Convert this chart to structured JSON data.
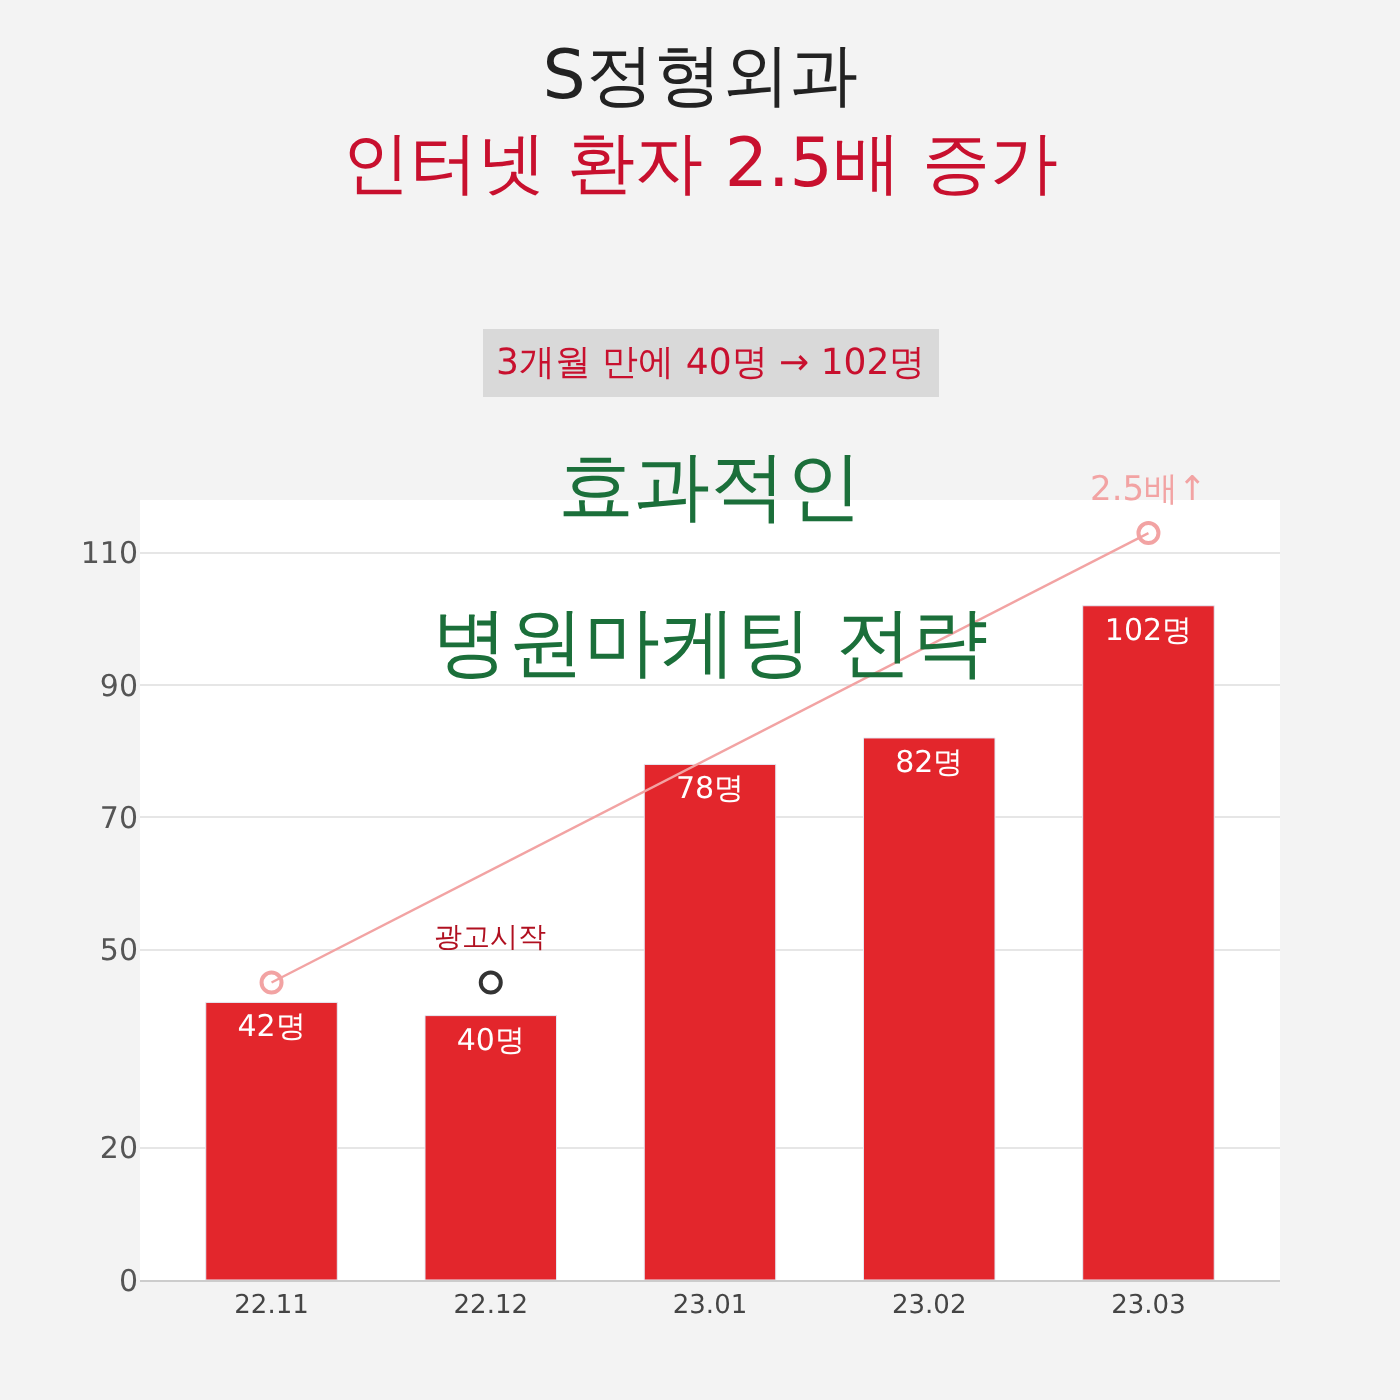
{
  "chart_data": {
    "type": "bar",
    "title": "S정형외과\n인터넷 환자 2.5배 증가",
    "subtitle": "3개월 만에 40명 → 102명",
    "categories": [
      "22.11",
      "22.12",
      "23.01",
      "23.02",
      "23.03"
    ],
    "series": [
      {
        "color": "#e3262c",
        "values": [
          42,
          40,
          78,
          82,
          102
        ],
        "value_labels": [
          "42명",
          "40명",
          "78명",
          "82명",
          "102명"
        ]
      },
      {
        "type": "line",
        "color": "#f2a3a3",
        "x": [
          "22.11",
          "23.03"
        ],
        "values": [
          45,
          113
        ],
        "marker": "circle"
      },
      {
        "type": "scatter",
        "color": "#333333",
        "x": [
          "22.12"
        ],
        "values": [
          45
        ],
        "marker": "circle"
      }
    ],
    "annotations": [
      "효과적인",
      "병원마케팅 전략",
      {
        "text": "광고시작",
        "x": "22.12",
        "y": 45
      },
      {
        "text": "2.5배↑",
        "x": "23.03",
        "y": 113
      }
    ],
    "ylim": [
      0,
      118
    ],
    "yticks": [
      0,
      20,
      50,
      70,
      90,
      110
    ],
    "grid": "y"
  }
}
